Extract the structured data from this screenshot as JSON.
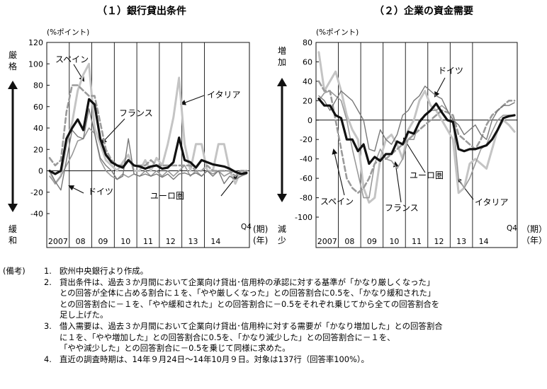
{
  "colors": {
    "ink": "#111111",
    "dark_grey": "#777777",
    "mid_grey": "#999999",
    "light_grey": "#c4c4c4",
    "dash_grey": "#9a9a9a"
  },
  "chart_data": [
    {
      "type": "line",
      "title": "（１）銀行貸出条件",
      "unit_label": "(%ポイント)",
      "axis_note_top": "厳格",
      "axis_note_bottom": "緩和",
      "x_axis_label": "（期）（年）",
      "q4_label": "Q4",
      "period_label": "(期)",
      "year_label": "(年)",
      "year_labels": [
        "2007",
        "08",
        "09",
        "10",
        "11",
        "12",
        "13",
        "14"
      ],
      "ylim": [
        -40,
        120
      ],
      "yticks": [
        -40,
        -20,
        0,
        20,
        40,
        60,
        80,
        100,
        120
      ],
      "x_start": "2007Q1",
      "series": [
        {
          "name": "ユーロ圏",
          "style": "bold",
          "values": [
            0,
            -3,
            0,
            30,
            40,
            48,
            38,
            67,
            62,
            30,
            15,
            8,
            5,
            3,
            10,
            5,
            4,
            2,
            4,
            5,
            2,
            3,
            8,
            31,
            10,
            8,
            3,
            10,
            8,
            6,
            5,
            4,
            2,
            -1,
            -3,
            -2
          ]
        },
        {
          "name": "ドイツ",
          "style": "dark_grey",
          "values": [
            0,
            -10,
            -18,
            10,
            38,
            32,
            30,
            58,
            35,
            12,
            5,
            0,
            -8,
            -5,
            30,
            -3,
            -5,
            -3,
            -5,
            -3,
            -6,
            -3,
            -8,
            -3,
            -2,
            -4,
            -2,
            -5,
            0,
            -5,
            0,
            -12,
            -5,
            -8,
            -5,
            -3
          ]
        },
        {
          "name": "フランス",
          "style": "mid_grey",
          "values": [
            -5,
            -12,
            -5,
            5,
            15,
            28,
            30,
            40,
            35,
            10,
            0,
            -5,
            -8,
            -3,
            -6,
            -3,
            -5,
            0,
            -5,
            0,
            -5,
            0,
            -5,
            0,
            5,
            -5,
            0,
            -5,
            0,
            -3,
            0,
            -5,
            -2,
            0,
            -3,
            0
          ]
        },
        {
          "name": "スペイン",
          "style": "dashed",
          "values": [
            12,
            5,
            10,
            55,
            80,
            80,
            75,
            70,
            70,
            45,
            20,
            10,
            5,
            5,
            10,
            5,
            5,
            5,
            10,
            5,
            5,
            5,
            5,
            5,
            5,
            5,
            0,
            0,
            5,
            0,
            0,
            0,
            0,
            -5,
            0,
            0
          ]
        },
        {
          "name": "イタリア",
          "style": "light_grey",
          "values": [
            0,
            -12,
            -5,
            25,
            45,
            75,
            90,
            100,
            40,
            25,
            10,
            5,
            0,
            8,
            15,
            0,
            0,
            10,
            0,
            12,
            5,
            25,
            50,
            87,
            25,
            0,
            25,
            25,
            0,
            0,
            25,
            25,
            0,
            -12,
            0,
            0
          ]
        }
      ],
      "labels": {
        "spain": "スペイン",
        "france": "フランス",
        "italy": "イタリア",
        "germany": "ドイツ",
        "euro": "ユーロ圏"
      }
    },
    {
      "type": "line",
      "title": "（２）企業の資金需要",
      "unit_label": "(%ポイント)",
      "axis_note_top": "増加",
      "axis_note_bottom": "減少",
      "q4_label": "Q4",
      "period_label": "（期）",
      "year_label": "（年）",
      "year_labels": [
        "2007",
        "08",
        "09",
        "10",
        "11",
        "12",
        "13",
        "14"
      ],
      "ylim": [
        -100,
        80
      ],
      "yticks": [
        -100,
        -80,
        -60,
        -40,
        -20,
        0,
        20,
        40,
        60,
        80
      ],
      "x_start": "2007Q1",
      "series": [
        {
          "name": "ユーロ圏",
          "style": "bold",
          "values": [
            22,
            15,
            15,
            5,
            2,
            -20,
            -20,
            -32,
            -25,
            -45,
            -38,
            -42,
            -35,
            -35,
            -22,
            -25,
            -12,
            -14,
            -2,
            5,
            10,
            17,
            8,
            0,
            -2,
            -30,
            -32,
            -30,
            -30,
            -28,
            -26,
            -20,
            -10,
            2,
            4,
            5
          ]
        },
        {
          "name": "ドイツ",
          "style": "dark_grey",
          "values": [
            25,
            20,
            10,
            20,
            30,
            25,
            20,
            10,
            0,
            -30,
            -32,
            -10,
            -20,
            -25,
            -15,
            5,
            10,
            20,
            25,
            35,
            30,
            25,
            22,
            10,
            0,
            -5,
            -15,
            -10,
            -5,
            -15,
            -20,
            0,
            10,
            15,
            15,
            18
          ]
        },
        {
          "name": "フランス",
          "style": "mid_grey",
          "values": [
            20,
            28,
            30,
            25,
            20,
            0,
            -30,
            -55,
            -80,
            -80,
            -45,
            -30,
            -40,
            -42,
            -50,
            -40,
            -20,
            -20,
            0,
            5,
            10,
            10,
            15,
            10,
            0,
            -60,
            -70,
            -60,
            -45,
            -30,
            -25,
            -12,
            0,
            5,
            5,
            5
          ]
        },
        {
          "name": "スペイン",
          "style": "dashed",
          "values": [
            40,
            30,
            30,
            0,
            -30,
            -60,
            -70,
            -75,
            -70,
            -60,
            -45,
            -40,
            -40,
            -35,
            -30,
            -25,
            -20,
            -15,
            -10,
            -5,
            0,
            5,
            10,
            8,
            5,
            -15,
            -20,
            -25,
            -30,
            -20,
            -5,
            5,
            10,
            15,
            20,
            20
          ]
        },
        {
          "name": "イタリア",
          "style": "light_grey",
          "values": [
            70,
            30,
            40,
            50,
            30,
            5,
            -10,
            -20,
            -70,
            -85,
            -80,
            -40,
            -20,
            -15,
            -25,
            -40,
            -10,
            0,
            20,
            30,
            15,
            10,
            0,
            -10,
            -20,
            -75,
            -70,
            -45,
            -40,
            -45,
            -50,
            -30,
            -10,
            0,
            -5,
            -12
          ]
        }
      ],
      "labels": {
        "germany": "ドイツ",
        "euro": "ユーロ圏",
        "spain": "スペイン",
        "france": "フランス",
        "italy": "イタリア"
      }
    }
  ],
  "notes": {
    "heading": "(備考)",
    "items": [
      {
        "num": "1.",
        "text": "欧州中央銀行より作成。"
      },
      {
        "num": "2.",
        "text": "貸出条件は、過去３か月間において企業向け貸出･信用枠の承認に対する基準が「かなり厳しくなった」\nとの回答が全体に占める割合に１を、「やや厳しくなった」との回答割合に0.5を、「かなり緩和された」\nとの回答割合に－１を、「やや緩和された」との回答割合に－0.5をそれぞれ乗じてから全ての回答割合を\n足し上げた。"
      },
      {
        "num": "3.",
        "text": "借入需要は、過去３か月間において企業向け貸出･信用枠に対する需要が「かなり増加した」との回答割合\nに１を、「やや増加した」との回答割合に0.5を、「かなり減少した」との回答割合に－１を、\n「やや減少した」との回答割合に－0.5を乗じて同様に求めた。"
      },
      {
        "num": "4.",
        "text": "直近の調査時期は、14年９月24日～14年10月９日。対象は137行（回答率100%）。"
      }
    ]
  }
}
